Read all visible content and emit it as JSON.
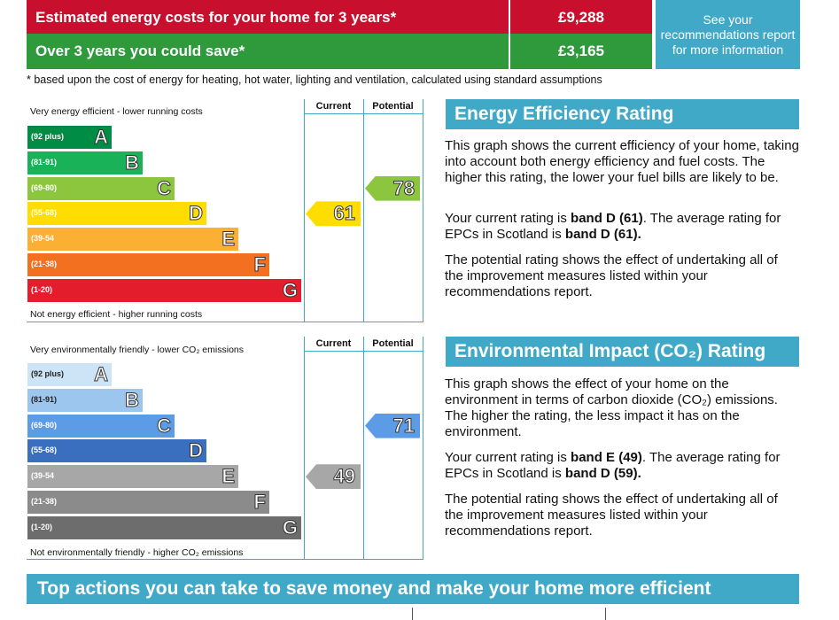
{
  "costs": {
    "estimated_label": "Estimated energy costs for your home for 3 years*",
    "estimated_value": "£9,288",
    "save_label": "Over 3 years you could save*",
    "save_value": "£3,165",
    "see_box": "See your recommendations report for more information",
    "footnote": "* based upon the cost of energy for heating, hot water, lighting and ventilation, calculated using standard assumptions",
    "colors": {
      "estimated": "#c8102e",
      "save": "#2e9a3c",
      "see_box": "#3fa9c7"
    }
  },
  "energy_graph": {
    "col_current": "Current",
    "col_potential": "Potential",
    "top_label": "Very energy efficient - lower running costs",
    "bottom_label": "Not energy efficient - higher running costs",
    "bands": [
      {
        "range": "(92 plus)",
        "letter": "A",
        "color": "#008c45"
      },
      {
        "range": "(81-91)",
        "letter": "B",
        "color": "#19b259"
      },
      {
        "range": "(69-80)",
        "letter": "C",
        "color": "#8cc63f"
      },
      {
        "range": "(55-68)",
        "letter": "D",
        "color": "#ffdd00"
      },
      {
        "range": "(39-54",
        "letter": "E",
        "color": "#fbb034"
      },
      {
        "range": "(21-38)",
        "letter": "F",
        "color": "#f37021"
      },
      {
        "range": "(1-20)",
        "letter": "G",
        "color": "#e31d2b"
      }
    ],
    "current": {
      "value": "61",
      "band": "D",
      "color": "#ffdd00"
    },
    "potential": {
      "value": "78",
      "band": "C",
      "color": "#8cc63f"
    }
  },
  "env_graph": {
    "col_current": "Current",
    "col_potential": "Potential",
    "top_label": "Very environmentally friendly - lower CO₂ emissions",
    "bottom_label": "Not environmentally friendly - higher CO₂ emissions",
    "bands": [
      {
        "range": "(92 plus)",
        "letter": "A",
        "color": "#cde3f6"
      },
      {
        "range": "(81-91)",
        "letter": "B",
        "color": "#9dc6ee"
      },
      {
        "range": "(69-80)",
        "letter": "C",
        "color": "#5c9ce6"
      },
      {
        "range": "(55-68)",
        "letter": "D",
        "color": "#3a6fc0"
      },
      {
        "range": "(39-54",
        "letter": "E",
        "color": "#a7a7a7"
      },
      {
        "range": "(21-38)",
        "letter": "F",
        "color": "#8b8b8b"
      },
      {
        "range": "(1-20)",
        "letter": "G",
        "color": "#6d6d6d"
      }
    ],
    "current": {
      "value": "49",
      "band": "E",
      "color": "#a7a7a7"
    },
    "potential": {
      "value": "71",
      "band": "C",
      "color": "#5c9ce6"
    }
  },
  "energy_text": {
    "title": "Energy Efficiency Rating",
    "p1": "This graph shows the current efficiency of your home, taking into account both energy efficiency and fuel costs. The higher this rating, the lower your fuel bills are likely to be.",
    "p2_a": "Your current rating is ",
    "p2_b": "band D (61)",
    "p2_c": ". The average rating for EPCs in Scotland is ",
    "p2_d": "band D (61).",
    "p3": "The potential rating shows the effect of undertaking all of the improvement measures listed within your recommendations report."
  },
  "env_text": {
    "title": "Environmental Impact (CO₂) Rating",
    "p1": "This graph shows the effect of your home on the environment in terms of carbon dioxide (CO₂) emissions. The higher the rating, the less impact it has on the environment.",
    "p2_a": "Your current rating is ",
    "p2_b": "band E (49)",
    "p2_c": ". The average rating for EPCs in Scotland is ",
    "p2_d": "band D (59).",
    "p3": "The potential rating shows the effect of undertaking all of the improvement measures listed within your recommendations report."
  },
  "bottom_banner": "Top actions you can take to save money and make your home more efficient"
}
